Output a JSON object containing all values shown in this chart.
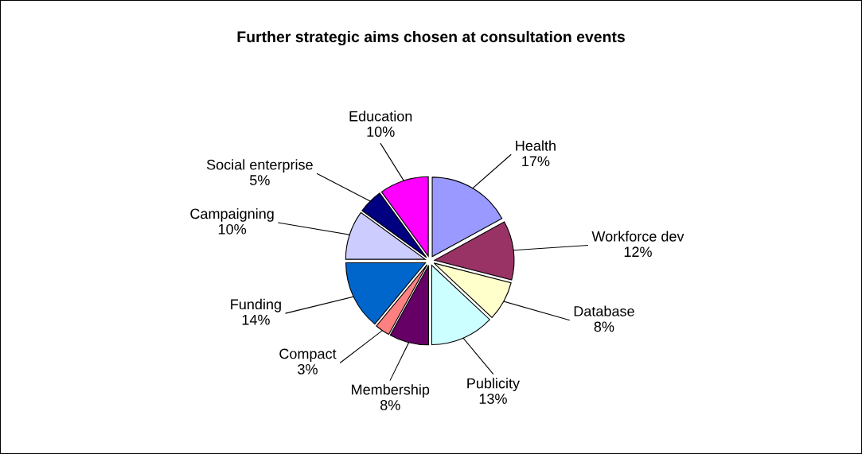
{
  "chart_data": {
    "type": "pie",
    "title": "Further strategic aims chosen at consultation events",
    "categories": [
      "Health",
      "Workforce dev",
      "Database",
      "Publicity",
      "Membership",
      "Compact",
      "Funding",
      "Campaigning",
      "Social enterprise",
      "Education"
    ],
    "values": [
      17,
      12,
      8,
      13,
      8,
      3,
      14,
      10,
      5,
      10
    ],
    "value_labels": [
      "17%",
      "12%",
      "8%",
      "13%",
      "8%",
      "3%",
      "14%",
      "10%",
      "5%",
      "10%"
    ],
    "colors": [
      "#9999ff",
      "#993366",
      "#ffffcc",
      "#ccffff",
      "#660066",
      "#ff8080",
      "#0066cc",
      "#ccccff",
      "#000080",
      "#ff00ff"
    ],
    "legend": false
  }
}
